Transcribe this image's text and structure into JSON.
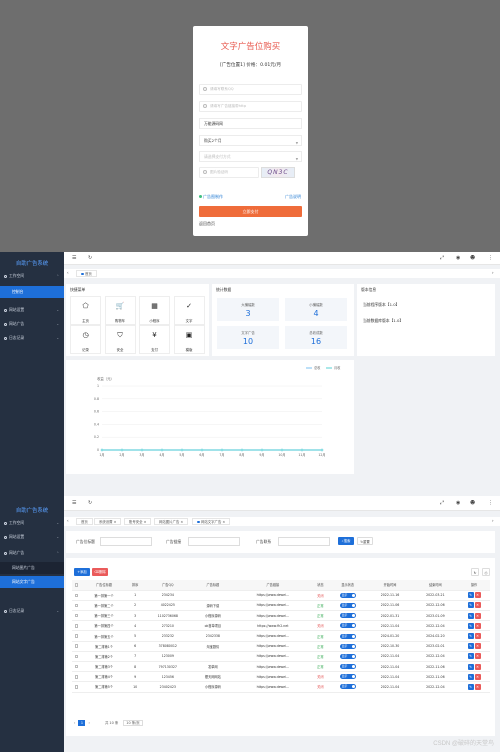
{
  "purchase": {
    "title": "文字广告位购买",
    "subtitle": "[广告位置1] 价格：0.01元/月",
    "qq_placeholder": "请填写联系QQ",
    "url_placeholder": "请填写广告链接带http",
    "word_value": "万能源码网",
    "duration_value": "购买2个月",
    "pay_method_placeholder": "请选择支付方式",
    "captcha_placeholder": "图片验证码",
    "captcha_text": "QN3C",
    "ad_make_link": "广告图制作",
    "ad_desc_link": "广告说明",
    "pay_button": "立即支付",
    "back_link": "返回首页"
  },
  "sidebar": {
    "brand": "自助广告系统",
    "items": [
      {
        "label": "工作空间"
      },
      {
        "label": "网站设置"
      },
      {
        "label": "网站广告"
      },
      {
        "label": "日志记录"
      }
    ],
    "console_label": "控制台",
    "sub_items": [
      "网站图片广告",
      "网站文字广告"
    ]
  },
  "dashboard": {
    "home_tab": "首页",
    "quick_menu_title": "快捷菜单",
    "quick_items": [
      {
        "label": "主页",
        "icon": "pentagon-icon"
      },
      {
        "label": "购物车",
        "icon": "cart-icon"
      },
      {
        "label": "小程序",
        "icon": "qr-icon"
      },
      {
        "label": "文字",
        "icon": "check-circle-icon"
      },
      {
        "label": "记录",
        "icon": "clock-icon"
      },
      {
        "label": "安全",
        "icon": "shield-icon"
      },
      {
        "label": "支付",
        "icon": "currency-icon"
      },
      {
        "label": "模版",
        "icon": "image-icon"
      }
    ],
    "stats_title": "统计数据",
    "stats": [
      {
        "label": "大横幅数",
        "value": "3"
      },
      {
        "label": "小横幅数",
        "value": "4"
      },
      {
        "label": "文字广告",
        "value": "10"
      },
      {
        "label": "总收成数",
        "value": "16"
      }
    ],
    "info_title": "版本信息",
    "info_items": [
      "当前程序版本【1.0】",
      "当前数据库版本【1.0】"
    ],
    "legend": [
      "总收",
      "月收"
    ],
    "ylabel": "收益（元）"
  },
  "chart_data": {
    "type": "line",
    "x": [
      "1月",
      "2月",
      "3月",
      "4月",
      "5月",
      "6月",
      "7月",
      "8月",
      "9月",
      "10月",
      "11月",
      "12月"
    ],
    "series": [
      {
        "name": "总收",
        "values": [
          0,
          0,
          0,
          0,
          0,
          0,
          0,
          0,
          0,
          0,
          0,
          0
        ]
      },
      {
        "name": "月收",
        "values": [
          0,
          0,
          0,
          0,
          0,
          0,
          0,
          0,
          0,
          0,
          0,
          0
        ]
      }
    ],
    "yticks": [
      "1",
      "0.8",
      "0.6",
      "0.4",
      "0.2",
      "0"
    ],
    "ylim": [
      0,
      1
    ],
    "ylabel": "收益（元）",
    "legend_position": "top-right",
    "grid": true,
    "colors": [
      "#5ab1ef",
      "#2ec7c9"
    ]
  },
  "table_page": {
    "tabs": [
      "首页",
      "系统设置",
      "账号安全",
      "网站图片广告",
      "网站文字广告"
    ],
    "filter_labels": [
      "广告位标题",
      "广告链接",
      "广告联系"
    ],
    "search_btn": "搜索",
    "reset_btn": "重置",
    "add_btn": "添加",
    "delete_btn": "删除",
    "columns": [
      "广告位标题",
      "排序",
      "广告QQ",
      "广告标题",
      "广告链接",
      "状态",
      "显示状态",
      "开始时间",
      "结束时间",
      "操作"
    ],
    "rows": [
      [
        "第一排第一个",
        "1",
        "234234",
        "",
        "https://www.dewei...",
        "关闭",
        "",
        "2022-11-16",
        "2022-03-21"
      ],
      [
        "第一排第二个",
        "2",
        "4022425",
        "源码下载",
        "https://www.dewei...",
        "正常",
        "",
        "2022-11-06",
        "2022-12-06"
      ],
      [
        "第一排第三个",
        "3",
        "1102736068",
        "小程序源码",
        "https://www.dewei...",
        "正常",
        "",
        "2022-01-31",
        "2023-01-09"
      ],
      [
        "第一排第四个",
        "4",
        "273210",
        "ok首单项目",
        "https://www.fh2.net",
        "关闭",
        "",
        "2022-11-04",
        "2022-12-04"
      ],
      [
        "第一排第五个",
        "5",
        "233232",
        "2342338",
        "https://www.dewei...",
        "正常",
        "",
        "2024-01-20",
        "2024-02-20"
      ],
      [
        "第二排第1个",
        "6",
        "378080012",
        "淘宝剧情",
        "https://www.dewei...",
        "正常",
        "",
        "2022-10-30",
        "2023-02-01"
      ],
      [
        "第二排第2个",
        "7",
        "123009",
        "",
        "https://www.dewei...",
        "正常",
        "",
        "2022-11-04",
        "2022-12-04"
      ],
      [
        "第二排第3个",
        "8",
        "797130327",
        "发单网",
        "https://www.dewei...",
        "正常",
        "",
        "2022-11-04",
        "2022-11-06"
      ],
      [
        "第二排第4个",
        "9",
        "123456",
        "樱天网网站",
        "https://www.dewei...",
        "关闭",
        "",
        "2022-11-04",
        "2022-11-06"
      ],
      [
        "第二排第5个",
        "10",
        "23402423",
        "小程序源码",
        "https://www.dewei...",
        "关闭",
        "",
        "2022-11-04",
        "2022-12-04"
      ]
    ],
    "toggle_label": "显示",
    "pager": {
      "page": "1",
      "total": "共 10 条",
      "per_page": "10 条/页"
    }
  },
  "watermark": "CSDN @破碎的天堂鸟"
}
